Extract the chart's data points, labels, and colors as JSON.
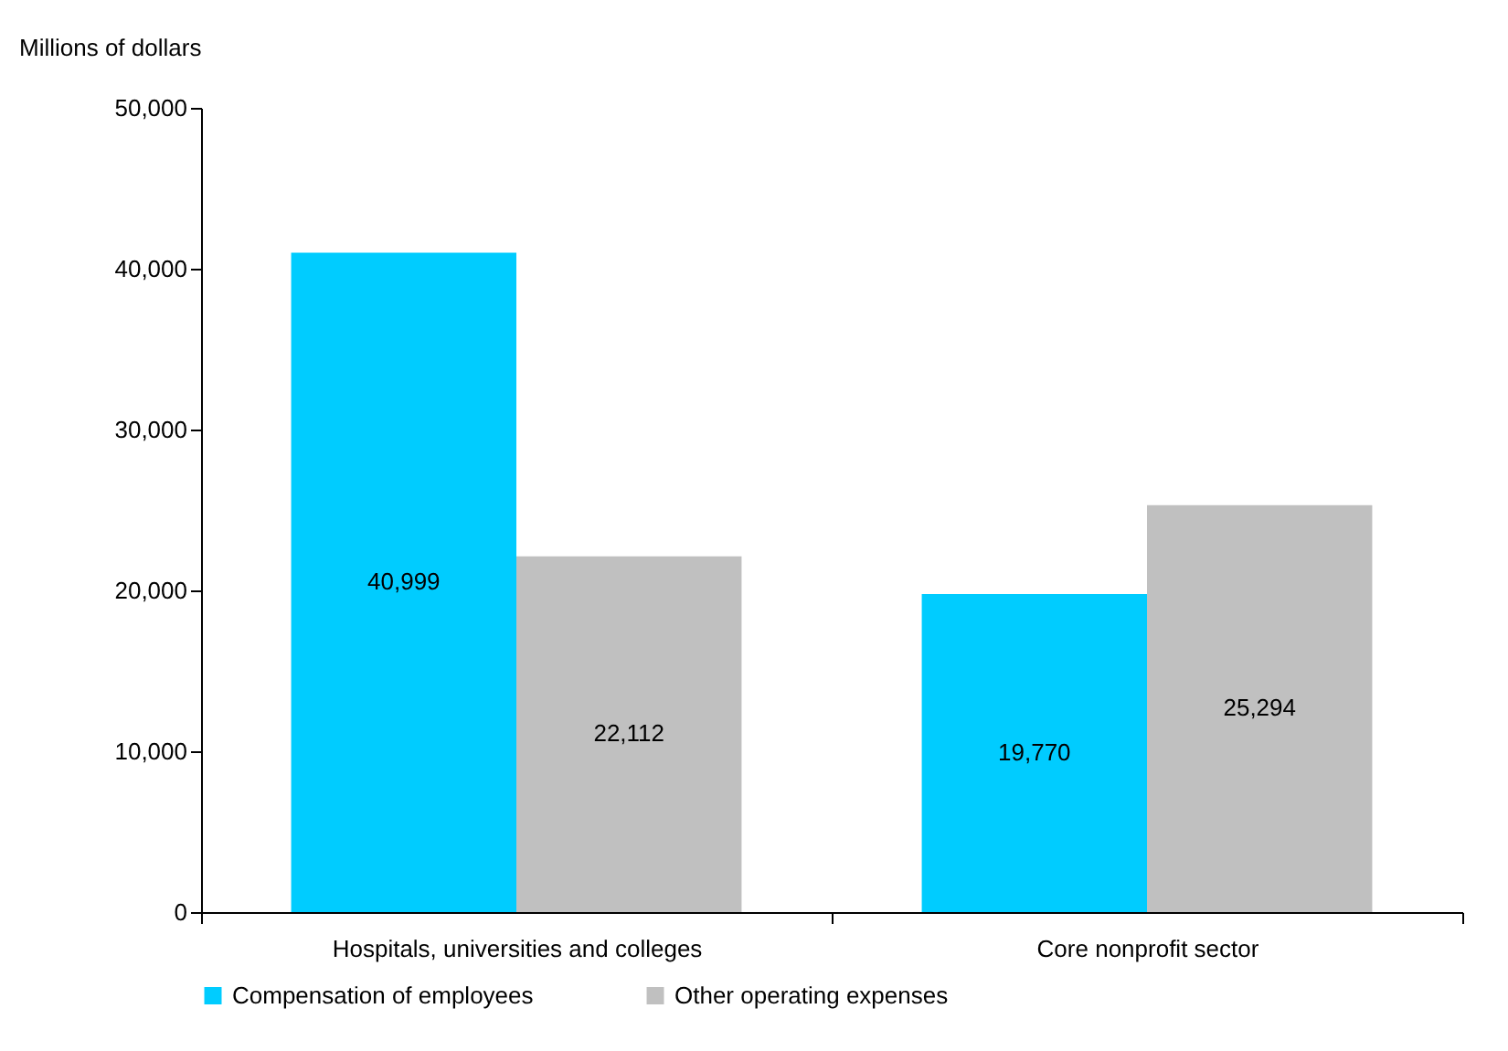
{
  "chart_data": {
    "type": "bar",
    "ylabel": "Millions of dollars",
    "categories": [
      "Hospitals, universities and colleges",
      "Core nonprofit sector"
    ],
    "series": [
      {
        "name": "Compensation of employees",
        "color": "#00ccff",
        "values": [
          40999,
          19770
        ],
        "value_labels": [
          "40,999",
          "19,770"
        ]
      },
      {
        "name": "Other operating expenses",
        "color": "#c0c0c0",
        "values": [
          22112,
          25294
        ],
        "value_labels": [
          "22,112",
          "25,294"
        ]
      }
    ],
    "ylim": [
      0,
      50000
    ],
    "yticks": [
      {
        "value": 0,
        "label": "0"
      },
      {
        "value": 10000,
        "label": "10,000"
      },
      {
        "value": 20000,
        "label": "20,000"
      },
      {
        "value": 30000,
        "label": "30,000"
      },
      {
        "value": 40000,
        "label": "40,000"
      },
      {
        "value": 50000,
        "label": "50,000"
      }
    ],
    "grid": false,
    "legend": "bottom"
  }
}
